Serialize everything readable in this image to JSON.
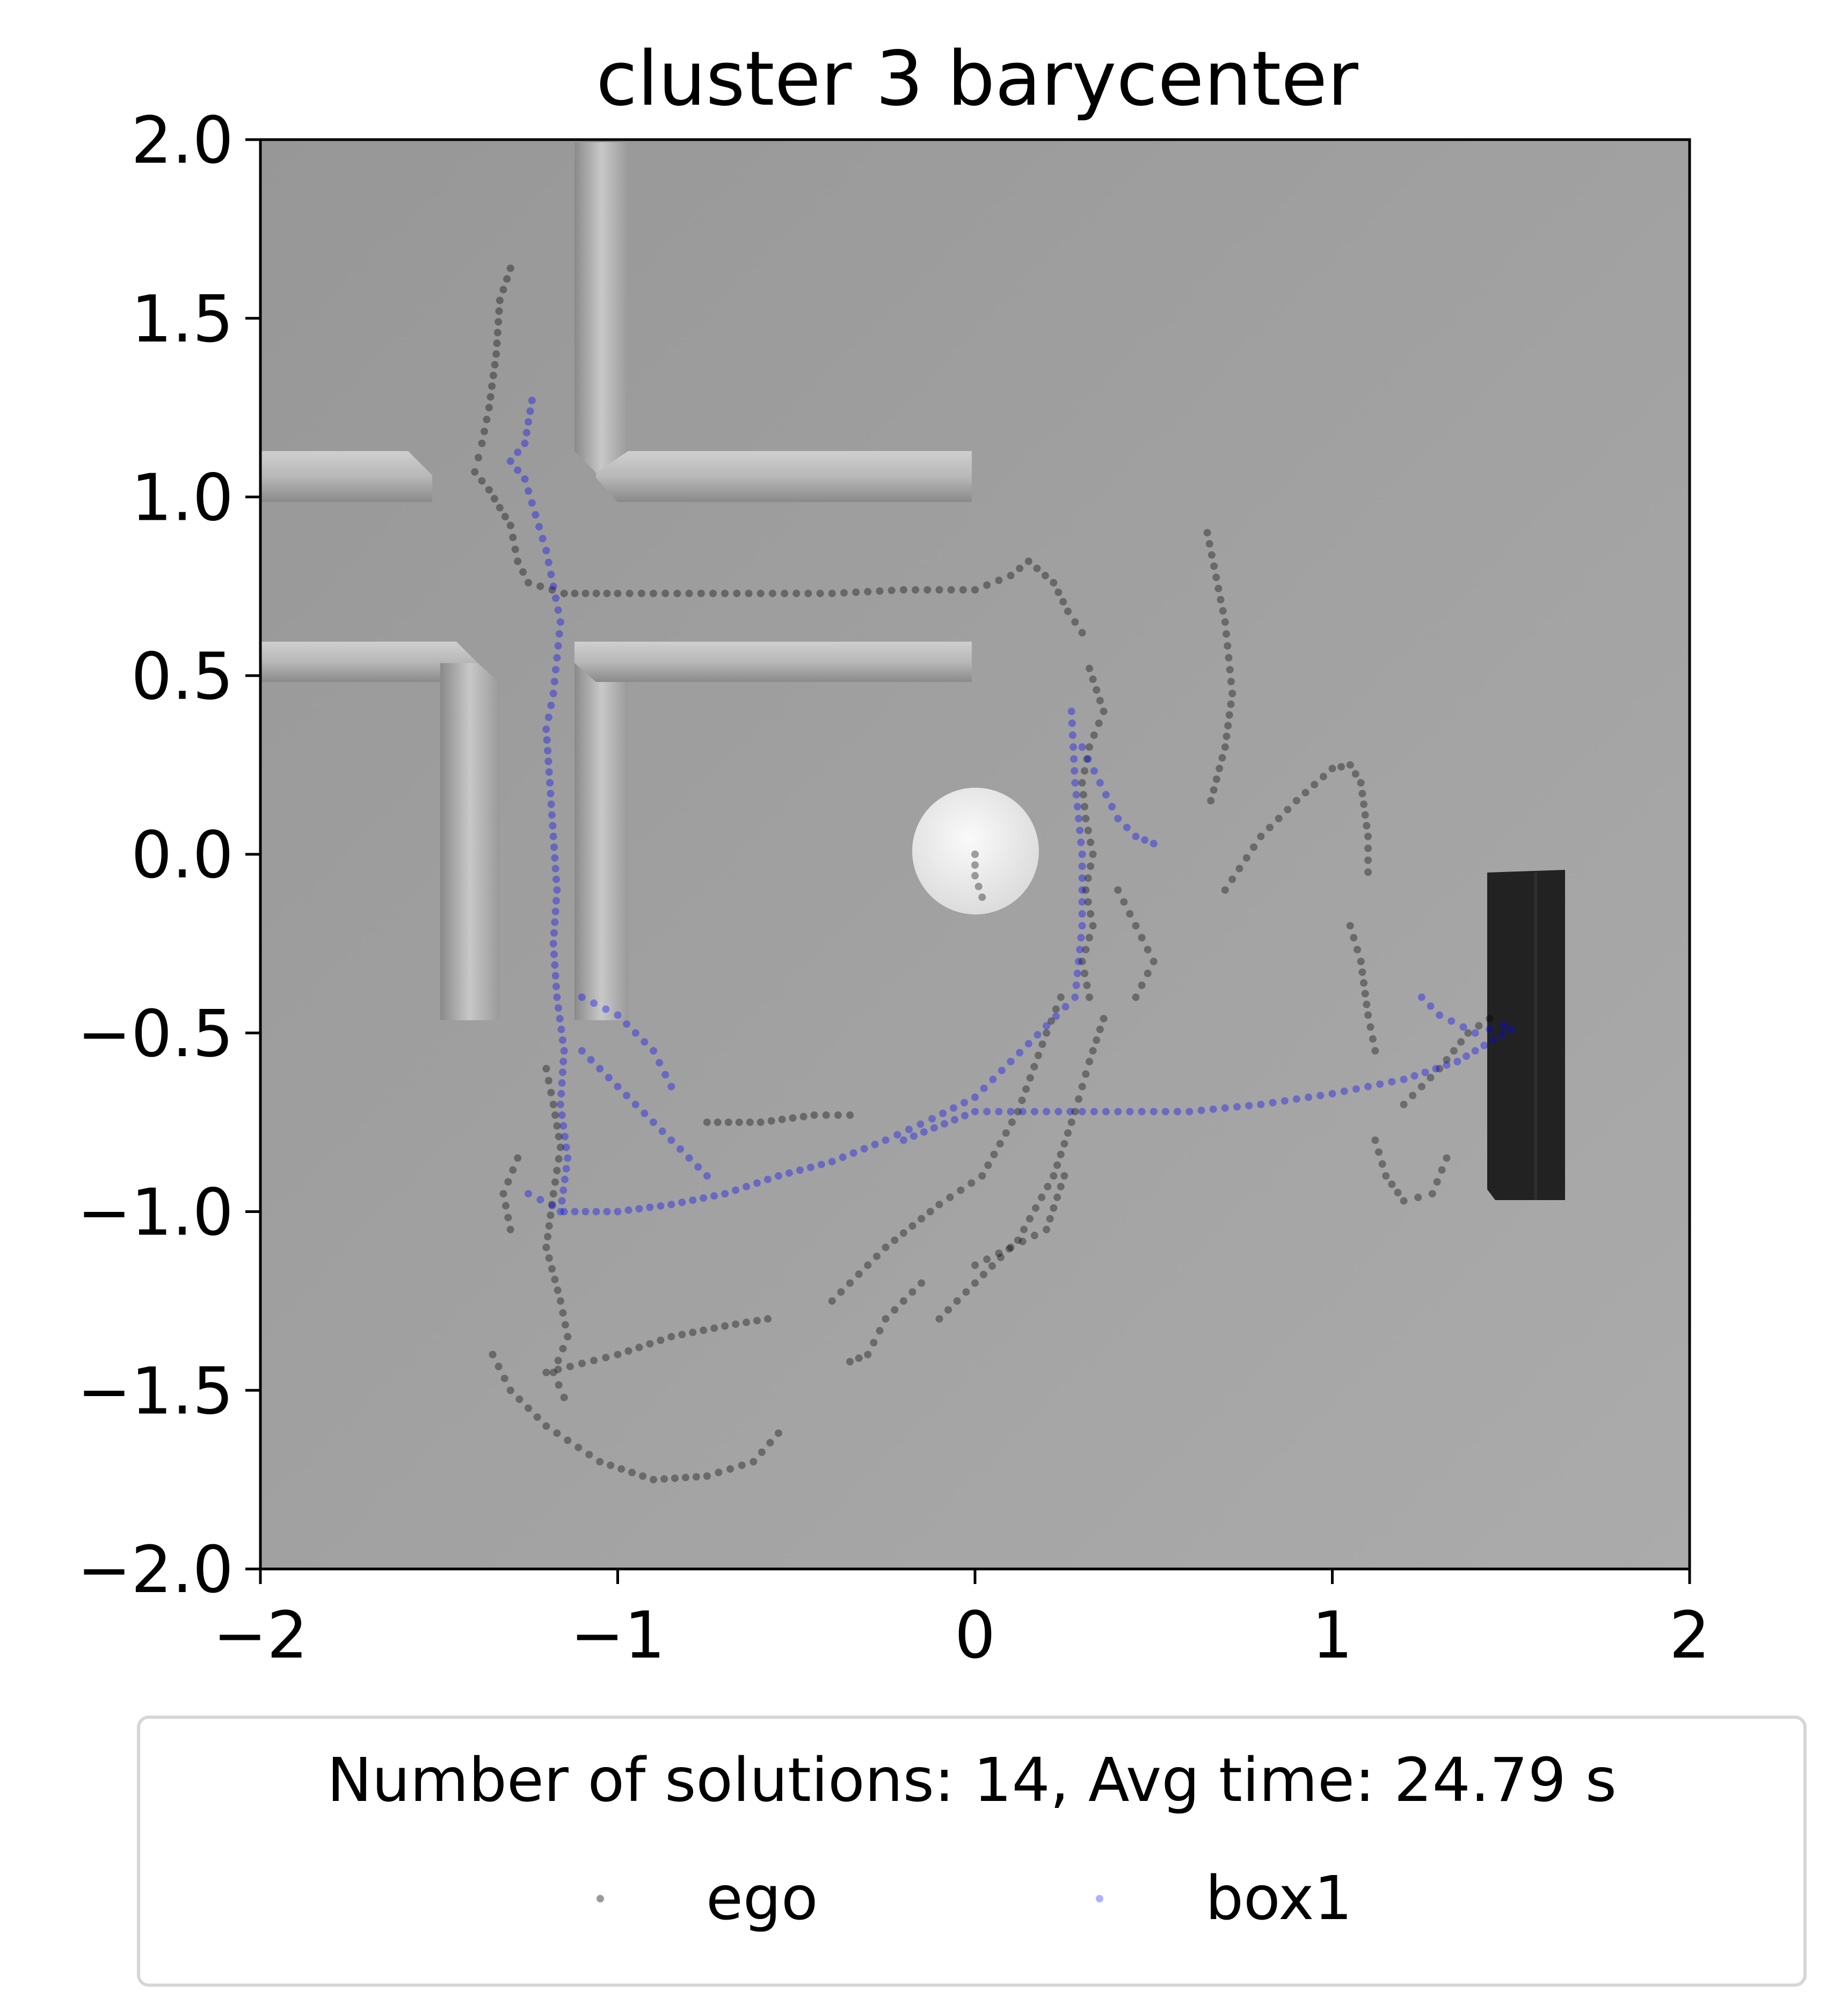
{
  "chart_data": {
    "type": "scatter",
    "title": "cluster 3 barycenter",
    "xlim": [
      -2,
      2
    ],
    "ylim": [
      -2,
      2
    ],
    "x_ticks": [
      -2,
      -1,
      0,
      1,
      2
    ],
    "x_tick_labels": [
      "−2",
      "−1",
      "0",
      "1",
      "2"
    ],
    "y_ticks": [
      2.0,
      1.5,
      1.0,
      0.5,
      0.0,
      -0.5,
      -1.0,
      -1.5,
      -2.0
    ],
    "y_tick_labels": [
      "2.0",
      "1.5",
      "1.0",
      "0.5",
      "0.0",
      "−0.5",
      "−1.0",
      "−1.5",
      "−2.0"
    ],
    "grid": false,
    "legend": {
      "title": "Number of solutions: 14, Avg time: 24.79 s",
      "placement": "bottom",
      "entries": [
        "ego",
        "box1"
      ]
    },
    "background": "top-down rendered scene: grey floor, wall segments, white disc goal, dark block",
    "series": [
      {
        "name": "ego",
        "color": "#000000",
        "paths": [
          [
            [
              -1.3,
              1.64
            ],
            [
              -1.33,
              1.55
            ],
            [
              -1.34,
              1.4
            ],
            [
              -1.36,
              1.25
            ],
            [
              -1.38,
              1.15
            ],
            [
              -1.4,
              1.07
            ],
            [
              -1.36,
              1.02
            ],
            [
              -1.3,
              0.92
            ],
            [
              -1.28,
              0.82
            ],
            [
              -1.25,
              0.76
            ],
            [
              -1.15,
              0.73
            ],
            [
              -1.0,
              0.73
            ],
            [
              -0.8,
              0.73
            ],
            [
              -0.6,
              0.73
            ],
            [
              -0.4,
              0.73
            ],
            [
              -0.2,
              0.74
            ],
            [
              0.0,
              0.74
            ],
            [
              0.1,
              0.78
            ],
            [
              0.15,
              0.82
            ],
            [
              0.22,
              0.76
            ],
            [
              0.26,
              0.68
            ],
            [
              0.3,
              0.62
            ]
          ],
          [
            [
              0.0,
              0.0
            ],
            [
              0.0,
              -0.06
            ],
            [
              0.02,
              -0.12
            ]
          ],
          [
            [
              -1.2,
              -0.6
            ],
            [
              -1.18,
              -0.7
            ],
            [
              -1.16,
              -0.82
            ],
            [
              -1.18,
              -0.95
            ],
            [
              -1.2,
              -1.1
            ],
            [
              -1.16,
              -1.25
            ],
            [
              -1.14,
              -1.35
            ],
            [
              -1.18,
              -1.45
            ],
            [
              -1.15,
              -1.52
            ]
          ],
          [
            [
              -1.28,
              -0.85
            ],
            [
              -1.32,
              -0.95
            ],
            [
              -1.3,
              -1.05
            ]
          ],
          [
            [
              -1.35,
              -1.4
            ],
            [
              -1.3,
              -1.5
            ],
            [
              -1.2,
              -1.6
            ],
            [
              -1.05,
              -1.7
            ],
            [
              -0.9,
              -1.75
            ],
            [
              -0.75,
              -1.74
            ],
            [
              -0.62,
              -1.7
            ],
            [
              -0.55,
              -1.62
            ]
          ],
          [
            [
              -1.2,
              -1.45
            ],
            [
              -1.0,
              -1.4
            ],
            [
              -0.85,
              -1.35
            ],
            [
              -0.7,
              -1.32
            ],
            [
              -0.58,
              -1.3
            ]
          ],
          [
            [
              -0.75,
              -0.75
            ],
            [
              -0.6,
              -0.75
            ],
            [
              -0.45,
              -0.73
            ],
            [
              -0.35,
              -0.73
            ]
          ],
          [
            [
              -0.35,
              -1.42
            ],
            [
              -0.3,
              -1.4
            ],
            [
              -0.25,
              -1.3
            ],
            [
              -0.15,
              -1.2
            ]
          ],
          [
            [
              -0.1,
              -1.3
            ],
            [
              0.0,
              -1.2
            ],
            [
              0.12,
              -1.08
            ],
            [
              0.22,
              -0.9
            ],
            [
              0.28,
              -0.72
            ],
            [
              0.32,
              -0.58
            ],
            [
              0.36,
              -0.46
            ]
          ],
          [
            [
              -0.4,
              -1.25
            ],
            [
              -0.25,
              -1.1
            ],
            [
              -0.1,
              -0.98
            ],
            [
              0.02,
              -0.9
            ],
            [
              0.12,
              -0.72
            ],
            [
              0.2,
              -0.5
            ],
            [
              0.24,
              -0.4
            ]
          ],
          [
            [
              0.0,
              -1.15
            ],
            [
              0.1,
              -1.1
            ],
            [
              0.2,
              -1.05
            ],
            [
              0.25,
              -0.9
            ]
          ],
          [
            [
              0.32,
              0.52
            ],
            [
              0.36,
              0.4
            ],
            [
              0.32,
              0.3
            ],
            [
              0.3,
              0.2
            ],
            [
              0.31,
              0.1
            ],
            [
              0.33,
              0.0
            ],
            [
              0.31,
              -0.1
            ],
            [
              0.33,
              -0.2
            ],
            [
              0.3,
              -0.3
            ],
            [
              0.32,
              -0.4
            ]
          ],
          [
            [
              0.4,
              -0.1
            ],
            [
              0.45,
              -0.2
            ],
            [
              0.5,
              -0.3
            ],
            [
              0.45,
              -0.4
            ]
          ],
          [
            [
              0.65,
              0.9
            ],
            [
              0.7,
              0.65
            ],
            [
              0.72,
              0.45
            ],
            [
              0.7,
              0.3
            ],
            [
              0.66,
              0.15
            ]
          ],
          [
            [
              0.7,
              -0.1
            ],
            [
              0.8,
              0.05
            ],
            [
              0.9,
              0.15
            ],
            [
              1.0,
              0.24
            ],
            [
              1.05,
              0.25
            ],
            [
              1.08,
              0.2
            ],
            [
              1.1,
              0.05
            ],
            [
              1.1,
              -0.05
            ]
          ],
          [
            [
              1.05,
              -0.2
            ],
            [
              1.08,
              -0.3
            ],
            [
              1.1,
              -0.45
            ],
            [
              1.12,
              -0.55
            ]
          ],
          [
            [
              1.12,
              -0.8
            ],
            [
              1.15,
              -0.9
            ],
            [
              1.2,
              -0.97
            ],
            [
              1.28,
              -0.95
            ],
            [
              1.32,
              -0.85
            ]
          ],
          [
            [
              1.2,
              -0.7
            ],
            [
              1.3,
              -0.6
            ],
            [
              1.38,
              -0.5
            ],
            [
              1.44,
              -0.46
            ]
          ]
        ]
      },
      {
        "name": "box1",
        "color": "#0000ff",
        "paths": [
          [
            [
              -1.24,
              1.27
            ],
            [
              -1.26,
              1.15
            ],
            [
              -1.3,
              1.1
            ],
            [
              -1.26,
              1.05
            ],
            [
              -1.23,
              0.95
            ],
            [
              -1.2,
              0.85
            ],
            [
              -1.18,
              0.75
            ],
            [
              -1.16,
              0.65
            ],
            [
              -1.17,
              0.55
            ],
            [
              -1.18,
              0.45
            ],
            [
              -1.2,
              0.35
            ],
            [
              -1.19,
              0.2
            ],
            [
              -1.18,
              0.05
            ],
            [
              -1.17,
              -0.1
            ],
            [
              -1.18,
              -0.25
            ],
            [
              -1.17,
              -0.4
            ],
            [
              -1.15,
              -0.55
            ],
            [
              -1.16,
              -0.7
            ],
            [
              -1.14,
              -0.85
            ],
            [
              -1.16,
              -1.0
            ]
          ],
          [
            [
              -1.25,
              -0.95
            ],
            [
              -1.15,
              -1.0
            ],
            [
              -1.0,
              -1.0
            ],
            [
              -0.85,
              -0.98
            ],
            [
              -0.7,
              -0.95
            ],
            [
              -0.55,
              -0.9
            ],
            [
              -0.4,
              -0.86
            ],
            [
              -0.25,
              -0.8
            ],
            [
              -0.12,
              -0.74
            ],
            [
              0.0,
              -0.68
            ],
            [
              0.1,
              -0.58
            ],
            [
              0.2,
              -0.48
            ],
            [
              0.28,
              -0.4
            ],
            [
              0.3,
              -0.2
            ],
            [
              0.3,
              0.0
            ],
            [
              0.28,
              0.2
            ],
            [
              0.27,
              0.4
            ]
          ],
          [
            [
              0.3,
              0.3
            ],
            [
              0.35,
              0.2
            ],
            [
              0.4,
              0.1
            ],
            [
              0.45,
              0.05
            ],
            [
              0.5,
              0.03
            ]
          ],
          [
            [
              -0.2,
              -0.8
            ],
            [
              0.0,
              -0.72
            ],
            [
              0.2,
              -0.72
            ],
            [
              0.4,
              -0.72
            ],
            [
              0.6,
              -0.72
            ],
            [
              0.8,
              -0.7
            ],
            [
              1.0,
              -0.67
            ],
            [
              1.2,
              -0.63
            ],
            [
              1.35,
              -0.58
            ],
            [
              1.45,
              -0.52
            ],
            [
              1.5,
              -0.49
            ]
          ],
          [
            [
              -1.1,
              -0.4
            ],
            [
              -1.0,
              -0.45
            ],
            [
              -0.9,
              -0.55
            ],
            [
              -0.85,
              -0.65
            ]
          ],
          [
            [
              -1.1,
              -0.55
            ],
            [
              -0.95,
              -0.7
            ],
            [
              -0.85,
              -0.8
            ],
            [
              -0.75,
              -0.9
            ]
          ],
          [
            [
              1.25,
              -0.4
            ],
            [
              1.3,
              -0.45
            ],
            [
              1.4,
              -0.5
            ],
            [
              1.48,
              -0.48
            ]
          ]
        ]
      }
    ]
  }
}
